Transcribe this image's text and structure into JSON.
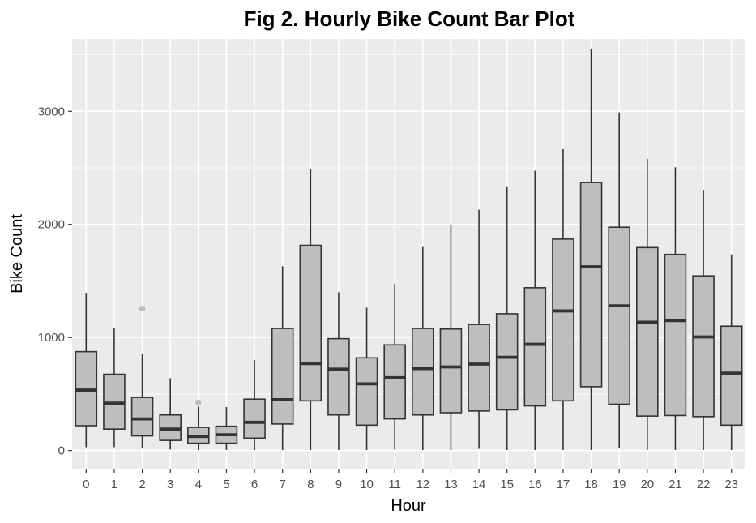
{
  "chart_data": {
    "type": "boxplot",
    "title": "Fig 2. Hourly Bike Count Bar Plot",
    "xlabel": "Hour",
    "ylabel": "Bike Count",
    "ylim": [
      -160,
      3640
    ],
    "yticks": [
      0,
      1000,
      2000,
      3000
    ],
    "grid": true,
    "legend": "none",
    "colors": {
      "panel": "#ebebeb",
      "grid": "#ffffff",
      "box_fill": "#bebebe",
      "box_line": "#333333",
      "outlier": "#bebebe"
    },
    "categories": [
      "0",
      "1",
      "2",
      "3",
      "4",
      "5",
      "6",
      "7",
      "8",
      "9",
      "10",
      "11",
      "12",
      "13",
      "14",
      "15",
      "16",
      "17",
      "18",
      "19",
      "20",
      "21",
      "22",
      "23"
    ],
    "boxes": [
      {
        "min": 30,
        "q1": 220,
        "median": 535,
        "q3": 875,
        "max": 1395,
        "outliers": []
      },
      {
        "min": 30,
        "q1": 190,
        "median": 420,
        "q3": 675,
        "max": 1085,
        "outliers": []
      },
      {
        "min": 20,
        "q1": 130,
        "median": 280,
        "q3": 470,
        "max": 855,
        "outliers": [
          1255
        ]
      },
      {
        "min": 10,
        "q1": 90,
        "median": 190,
        "q3": 315,
        "max": 640,
        "outliers": []
      },
      {
        "min": 5,
        "q1": 65,
        "median": 125,
        "q3": 205,
        "max": 390,
        "outliers": [
          425
        ]
      },
      {
        "min": 5,
        "q1": 65,
        "median": 140,
        "q3": 215,
        "max": 385,
        "outliers": []
      },
      {
        "min": 5,
        "q1": 110,
        "median": 250,
        "q3": 455,
        "max": 800,
        "outliers": []
      },
      {
        "min": 5,
        "q1": 235,
        "median": 450,
        "q3": 1080,
        "max": 1630,
        "outliers": []
      },
      {
        "min": 5,
        "q1": 440,
        "median": 770,
        "q3": 1815,
        "max": 2490,
        "outliers": []
      },
      {
        "min": 5,
        "q1": 315,
        "median": 720,
        "q3": 990,
        "max": 1400,
        "outliers": []
      },
      {
        "min": 5,
        "q1": 225,
        "median": 590,
        "q3": 820,
        "max": 1265,
        "outliers": []
      },
      {
        "min": 10,
        "q1": 280,
        "median": 645,
        "q3": 935,
        "max": 1475,
        "outliers": []
      },
      {
        "min": 5,
        "q1": 315,
        "median": 725,
        "q3": 1080,
        "max": 1800,
        "outliers": []
      },
      {
        "min": 5,
        "q1": 335,
        "median": 740,
        "q3": 1075,
        "max": 2000,
        "outliers": []
      },
      {
        "min": 15,
        "q1": 350,
        "median": 765,
        "q3": 1115,
        "max": 2130,
        "outliers": []
      },
      {
        "min": 5,
        "q1": 360,
        "median": 825,
        "q3": 1210,
        "max": 2330,
        "outliers": []
      },
      {
        "min": 5,
        "q1": 395,
        "median": 940,
        "q3": 1440,
        "max": 2475,
        "outliers": []
      },
      {
        "min": 5,
        "q1": 440,
        "median": 1235,
        "q3": 1870,
        "max": 2665,
        "outliers": []
      },
      {
        "min": 5,
        "q1": 565,
        "median": 1625,
        "q3": 2370,
        "max": 3555,
        "outliers": []
      },
      {
        "min": 20,
        "q1": 410,
        "median": 1280,
        "q3": 1975,
        "max": 2990,
        "outliers": []
      },
      {
        "min": 5,
        "q1": 305,
        "median": 1135,
        "q3": 1795,
        "max": 2580,
        "outliers": []
      },
      {
        "min": 5,
        "q1": 310,
        "median": 1150,
        "q3": 1735,
        "max": 2505,
        "outliers": []
      },
      {
        "min": 5,
        "q1": 300,
        "median": 1005,
        "q3": 1545,
        "max": 2305,
        "outliers": []
      },
      {
        "min": 5,
        "q1": 225,
        "median": 685,
        "q3": 1100,
        "max": 1735,
        "outliers": []
      }
    ]
  }
}
